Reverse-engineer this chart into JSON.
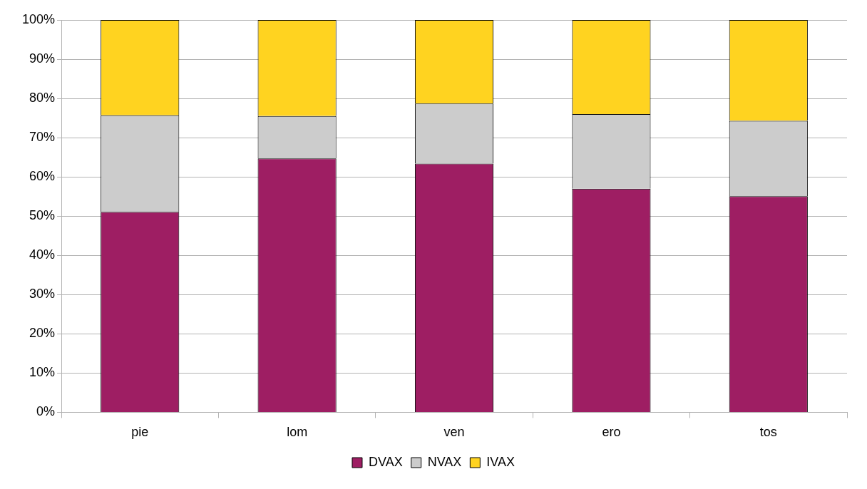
{
  "chart_data": {
    "type": "bar",
    "stacked": true,
    "categories": [
      "pie",
      "lom",
      "ven",
      "ero",
      "tos"
    ],
    "series": [
      {
        "name": "DVAX",
        "color": "#9e1e63",
        "values": [
          51.1,
          64.7,
          63.4,
          57.0,
          55.1
        ]
      },
      {
        "name": "NVAX",
        "color": "#cccccc",
        "values": [
          24.6,
          10.8,
          15.3,
          19.0,
          19.2
        ]
      },
      {
        "name": "IVAX",
        "color": "#ffd320",
        "values": [
          24.3,
          24.5,
          21.3,
          24.0,
          25.7
        ]
      }
    ],
    "ylim": [
      0,
      100
    ],
    "yticks": [
      {
        "value": 0,
        "label": "0%"
      },
      {
        "value": 10,
        "label": "10%"
      },
      {
        "value": 20,
        "label": "20%"
      },
      {
        "value": 30,
        "label": "30%"
      },
      {
        "value": 40,
        "label": "40%"
      },
      {
        "value": 50,
        "label": "50%"
      },
      {
        "value": 60,
        "label": "60%"
      },
      {
        "value": 70,
        "label": "70%"
      },
      {
        "value": 80,
        "label": "80%"
      },
      {
        "value": 90,
        "label": "90%"
      },
      {
        "value": 100,
        "label": "100%"
      }
    ],
    "grid": "y",
    "legend": "bottom"
  }
}
